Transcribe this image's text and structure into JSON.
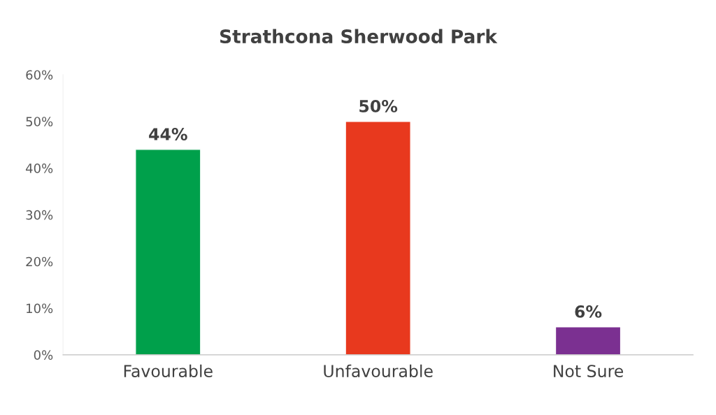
{
  "chart_data": {
    "type": "bar",
    "title": "Strathcona Sherwood Park",
    "categories": [
      "Favourable",
      "Unfavourable",
      "Not Sure"
    ],
    "values": [
      44,
      50,
      6
    ],
    "colors": [
      "#00a04b",
      "#e8391e",
      "#7b3091"
    ],
    "value_labels": [
      "44%",
      "50%",
      "6%"
    ],
    "ylim": [
      0,
      60
    ],
    "yticks": [
      {
        "value": 0,
        "label": "0%"
      },
      {
        "value": 10,
        "label": "10%"
      },
      {
        "value": 20,
        "label": "20%"
      },
      {
        "value": 30,
        "label": "30%"
      },
      {
        "value": 40,
        "label": "40%"
      },
      {
        "value": 50,
        "label": "50%"
      },
      {
        "value": 60,
        "label": "60%"
      }
    ],
    "grid": false,
    "legend": false
  }
}
